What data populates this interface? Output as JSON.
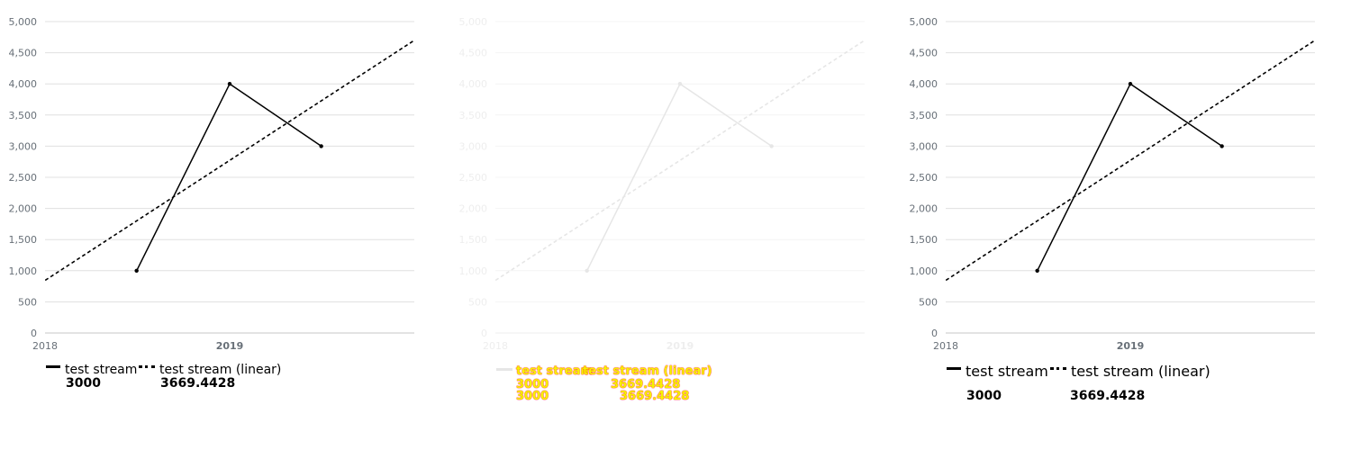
{
  "chart_data": [
    {
      "type": "line",
      "x_ticks": [
        "2018",
        "2019"
      ],
      "x_tick_bold": [
        false,
        true
      ],
      "y_ticks": [
        0,
        500,
        1000,
        1500,
        2000,
        2500,
        3000,
        3500,
        4000,
        4500,
        5000
      ],
      "y_tick_labels": [
        "0",
        "500",
        "1,000",
        "1,500",
        "2,000",
        "2,500",
        "3,000",
        "3,500",
        "4,000",
        "4,500",
        "5,000"
      ],
      "ylim": [
        0,
        5000
      ],
      "grid": true,
      "series": [
        {
          "name": "test stream",
          "style": "solid",
          "points": [
            [
              "2018-07-01",
              1000
            ],
            [
              "2019-01-01",
              4000
            ],
            [
              "2019-07-01",
              3000
            ]
          ]
        },
        {
          "name": "test stream (linear)",
          "style": "dashed",
          "points": [
            [
              "2017-12-01",
              680
            ],
            [
              "2020-01-01",
              4700
            ]
          ]
        }
      ],
      "legend": {
        "placement": "bottom-left",
        "values": [
          "3000",
          "3669.4428"
        ]
      },
      "color": "#000000"
    },
    {
      "type": "line",
      "x_ticks": [
        "2018",
        "2019"
      ],
      "x_tick_bold": [
        false,
        true
      ],
      "y_ticks": [
        0,
        500,
        1000,
        1500,
        2000,
        2500,
        3000,
        3500,
        4000,
        4500,
        5000
      ],
      "y_tick_labels": [
        "0",
        "500",
        "1,000",
        "1,500",
        "2,000",
        "2,500",
        "3,000",
        "3,500",
        "4,000",
        "4,500",
        "5,000"
      ],
      "ylim": [
        0,
        5000
      ],
      "grid": true,
      "faded": true,
      "series": [
        {
          "name": "test stream",
          "style": "solid",
          "points": [
            [
              "2018-07-01",
              1000
            ],
            [
              "2019-01-01",
              4000
            ],
            [
              "2019-07-01",
              3000
            ]
          ]
        },
        {
          "name": "test stream (linear)",
          "style": "dashed",
          "points": [
            [
              "2017-12-01",
              680
            ],
            [
              "2020-01-01",
              4700
            ]
          ]
        }
      ],
      "legend": {
        "placement": "bottom-left",
        "overlay_text": [
          "test stream",
          "test stream (linear)"
        ],
        "values_a": [
          "3000",
          "3669.4428"
        ],
        "values_b": [
          "3000",
          "3669.4428"
        ]
      },
      "color": "#e6e6e6"
    },
    {
      "type": "line",
      "x_ticks": [
        "2018",
        "2019"
      ],
      "x_tick_bold": [
        false,
        true
      ],
      "y_ticks": [
        0,
        500,
        1000,
        1500,
        2000,
        2500,
        3000,
        3500,
        4000,
        4500,
        5000
      ],
      "y_tick_labels": [
        "0",
        "500",
        "1,000",
        "1,500",
        "2,000",
        "2,500",
        "3,000",
        "3,500",
        "4,000",
        "4,500",
        "5,000"
      ],
      "ylim": [
        0,
        5000
      ],
      "grid": true,
      "series": [
        {
          "name": "test stream",
          "style": "solid",
          "points": [
            [
              "2018-07-01",
              1000
            ],
            [
              "2019-01-01",
              4000
            ],
            [
              "2019-07-01",
              3000
            ]
          ]
        },
        {
          "name": "test stream (linear)",
          "style": "dashed",
          "points": [
            [
              "2017-12-01",
              680
            ],
            [
              "2020-01-01",
              4700
            ]
          ]
        }
      ],
      "legend": {
        "placement": "bottom-left",
        "values": [
          "3000",
          "3669.4428"
        ]
      },
      "color": "#000000"
    }
  ]
}
